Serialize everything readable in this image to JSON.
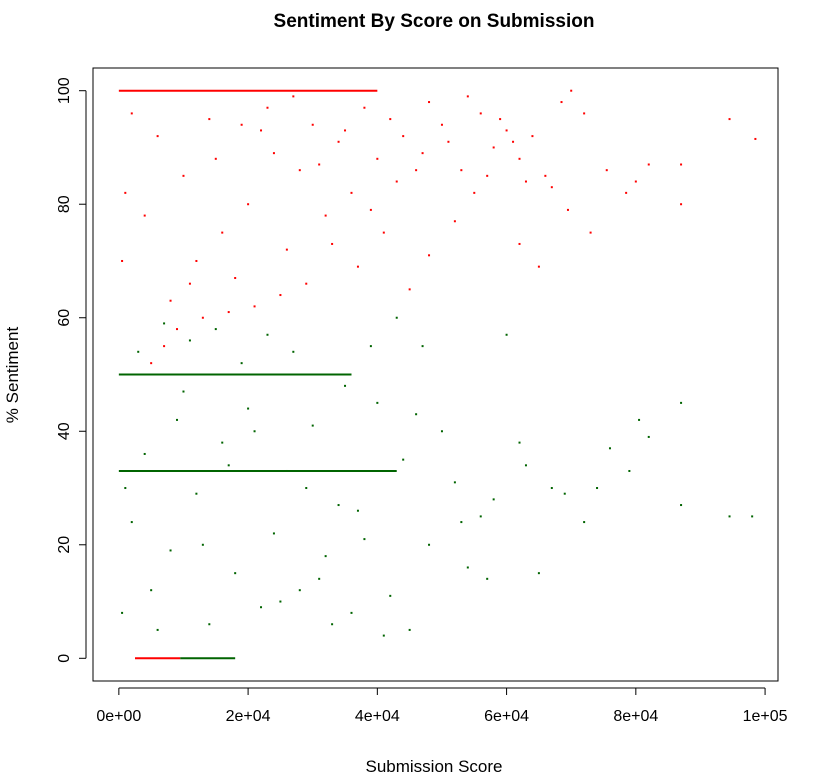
{
  "chart_data": {
    "type": "scatter",
    "title": "Sentiment By Score on Submission",
    "xlabel": "Submission Score",
    "ylabel": "% Sentiment",
    "xlim": [
      -4000,
      102000
    ],
    "ylim": [
      -4,
      104
    ],
    "x_ticks": [
      0,
      20000,
      40000,
      60000,
      80000,
      100000
    ],
    "x_tick_labels": [
      "0e+00",
      "2e+04",
      "4e+04",
      "6e+04",
      "8e+04",
      "1e+05"
    ],
    "y_ticks": [
      0,
      20,
      40,
      60,
      80,
      100
    ],
    "y_tick_labels": [
      "0",
      "20",
      "40",
      "60",
      "80",
      "100"
    ],
    "grid": false,
    "legend": "none",
    "colors": {
      "red": "#ff0000",
      "green": "#006400"
    },
    "series": [
      {
        "color": "red",
        "lines": [
          {
            "y": 100,
            "x0": 0,
            "x1": 40000
          },
          {
            "y": 0,
            "x0": 2500,
            "x1": 9500
          }
        ],
        "points": [
          [
            70000,
            100
          ],
          [
            68500,
            98
          ],
          [
            72000,
            96
          ],
          [
            94500,
            95
          ],
          [
            98500,
            91.5
          ],
          [
            60000,
            93
          ],
          [
            62000,
            88
          ],
          [
            66000,
            85
          ],
          [
            75500,
            86
          ],
          [
            78500,
            82
          ],
          [
            80000,
            84
          ],
          [
            82000,
            87
          ],
          [
            87000,
            87
          ],
          [
            87000,
            80
          ],
          [
            73000,
            75
          ],
          [
            69500,
            79
          ],
          [
            65000,
            69
          ],
          [
            62000,
            73
          ],
          [
            58000,
            90
          ],
          [
            56000,
            96
          ],
          [
            54000,
            99
          ],
          [
            50000,
            94
          ],
          [
            48000,
            98
          ],
          [
            46000,
            86
          ],
          [
            44000,
            92
          ],
          [
            42000,
            95
          ],
          [
            40000,
            88
          ],
          [
            38000,
            97
          ],
          [
            36000,
            82
          ],
          [
            34000,
            91
          ],
          [
            32000,
            78
          ],
          [
            30000,
            94
          ],
          [
            28000,
            86
          ],
          [
            26000,
            72
          ],
          [
            24000,
            89
          ],
          [
            22000,
            93
          ],
          [
            20000,
            80
          ],
          [
            18000,
            67
          ],
          [
            16000,
            75
          ],
          [
            14000,
            95
          ],
          [
            12000,
            70
          ],
          [
            10000,
            85
          ],
          [
            8000,
            63
          ],
          [
            6000,
            92
          ],
          [
            4000,
            78
          ],
          [
            2000,
            96
          ],
          [
            1000,
            82
          ],
          [
            500,
            70
          ],
          [
            55000,
            82
          ],
          [
            52000,
            77
          ],
          [
            48000,
            71
          ],
          [
            45000,
            65
          ],
          [
            41000,
            75
          ],
          [
            37000,
            69
          ],
          [
            33000,
            73
          ],
          [
            29000,
            66
          ],
          [
            25000,
            64
          ],
          [
            21000,
            62
          ],
          [
            17000,
            61
          ],
          [
            13000,
            60
          ],
          [
            9000,
            58
          ],
          [
            7000,
            55
          ],
          [
            5000,
            52
          ],
          [
            3000,
            50
          ],
          [
            11000,
            66
          ],
          [
            15000,
            88
          ],
          [
            19000,
            94
          ],
          [
            23000,
            97
          ],
          [
            27000,
            99
          ],
          [
            31000,
            87
          ],
          [
            35000,
            93
          ],
          [
            39000,
            79
          ],
          [
            43000,
            84
          ],
          [
            47000,
            89
          ],
          [
            51000,
            91
          ],
          [
            53000,
            86
          ],
          [
            57000,
            85
          ],
          [
            59000,
            95
          ],
          [
            61000,
            91
          ],
          [
            63000,
            84
          ],
          [
            64000,
            92
          ],
          [
            67000,
            83
          ]
        ]
      },
      {
        "color": "green",
        "lines": [
          {
            "y": 0,
            "x0": 9500,
            "x1": 18000
          },
          {
            "y": 33,
            "x0": 0,
            "x1": 43000
          },
          {
            "y": 50,
            "x0": 0,
            "x1": 36000
          }
        ],
        "points": [
          [
            87000,
            45
          ],
          [
            80500,
            42
          ],
          [
            76000,
            37
          ],
          [
            74000,
            30
          ],
          [
            72000,
            24
          ],
          [
            67000,
            30
          ],
          [
            65000,
            15
          ],
          [
            62000,
            38
          ],
          [
            60000,
            57
          ],
          [
            58000,
            28
          ],
          [
            56000,
            25
          ],
          [
            54000,
            16
          ],
          [
            52000,
            31
          ],
          [
            50000,
            40
          ],
          [
            48000,
            20
          ],
          [
            46000,
            43
          ],
          [
            44000,
            35
          ],
          [
            42000,
            11
          ],
          [
            40000,
            45
          ],
          [
            38000,
            21
          ],
          [
            36000,
            8
          ],
          [
            34000,
            27
          ],
          [
            32000,
            18
          ],
          [
            30000,
            41
          ],
          [
            28000,
            12
          ],
          [
            26000,
            33
          ],
          [
            24000,
            22
          ],
          [
            22000,
            9
          ],
          [
            20000,
            44
          ],
          [
            18000,
            15
          ],
          [
            16000,
            38
          ],
          [
            14000,
            6
          ],
          [
            12000,
            29
          ],
          [
            10000,
            47
          ],
          [
            8000,
            19
          ],
          [
            6000,
            5
          ],
          [
            4000,
            36
          ],
          [
            2000,
            24
          ],
          [
            94500,
            25
          ],
          [
            98000,
            25
          ],
          [
            87000,
            27
          ],
          [
            79000,
            33
          ],
          [
            82000,
            39
          ],
          [
            69000,
            29
          ],
          [
            63000,
            34
          ],
          [
            57000,
            14
          ],
          [
            53000,
            24
          ],
          [
            47000,
            55
          ],
          [
            43000,
            60
          ],
          [
            39000,
            55
          ],
          [
            35000,
            48
          ],
          [
            31000,
            14
          ],
          [
            27000,
            54
          ],
          [
            23000,
            57
          ],
          [
            19000,
            52
          ],
          [
            15000,
            58
          ],
          [
            11000,
            56
          ],
          [
            7000,
            59
          ],
          [
            3000,
            54
          ],
          [
            45000,
            5
          ],
          [
            41000,
            4
          ],
          [
            37000,
            26
          ],
          [
            33000,
            6
          ],
          [
            29000,
            30
          ],
          [
            25000,
            10
          ],
          [
            21000,
            40
          ],
          [
            17000,
            34
          ],
          [
            13000,
            20
          ],
          [
            9000,
            42
          ],
          [
            5000,
            12
          ],
          [
            1000,
            30
          ],
          [
            500,
            8
          ]
        ]
      }
    ]
  }
}
